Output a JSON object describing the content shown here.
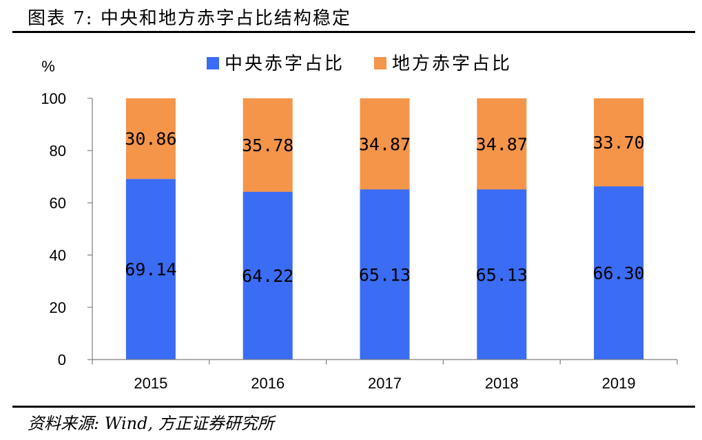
{
  "figure": {
    "title": "图表 7:  中央和地方赤字占比结构稳定",
    "source": "资料来源: Wind, 方正证券研究所"
  },
  "chart_data": {
    "type": "bar",
    "stacked": true,
    "categories": [
      "2015",
      "2016",
      "2017",
      "2018",
      "2019"
    ],
    "series": [
      {
        "name": "中央赤字占比",
        "color": "#3A6CF4",
        "values": [
          69.14,
          64.22,
          65.13,
          65.13,
          66.3
        ],
        "labels": [
          "69.14",
          "64.22",
          "65.13",
          "65.13",
          "66.30"
        ]
      },
      {
        "name": "地方赤字占比",
        "color": "#F4954A",
        "values": [
          30.86,
          35.78,
          34.87,
          34.87,
          33.7
        ],
        "labels": [
          "30.86",
          "35.78",
          "34.87",
          "34.87",
          "33.70"
        ]
      }
    ],
    "ylabel": "%",
    "ylim": [
      0,
      100
    ],
    "yticks": [
      0,
      20,
      40,
      60,
      80,
      100
    ],
    "legend_position": "top-center",
    "grid": false
  }
}
